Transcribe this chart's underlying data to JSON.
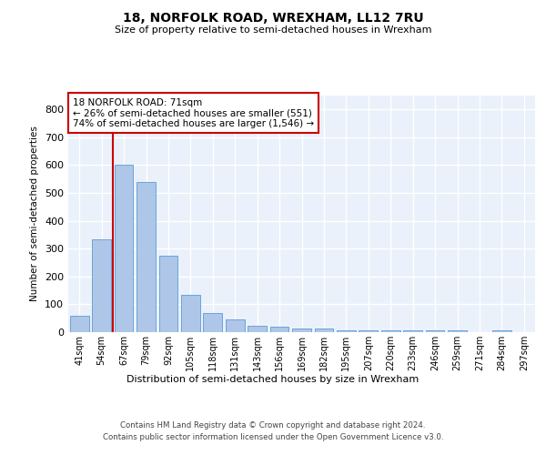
{
  "title": "18, NORFOLK ROAD, WREXHAM, LL12 7RU",
  "subtitle": "Size of property relative to semi-detached houses in Wrexham",
  "xlabel": "Distribution of semi-detached houses by size in Wrexham",
  "ylabel": "Number of semi-detached properties",
  "bin_labels": [
    "41sqm",
    "54sqm",
    "67sqm",
    "79sqm",
    "92sqm",
    "105sqm",
    "118sqm",
    "131sqm",
    "143sqm",
    "156sqm",
    "169sqm",
    "182sqm",
    "195sqm",
    "207sqm",
    "220sqm",
    "233sqm",
    "246sqm",
    "259sqm",
    "271sqm",
    "284sqm",
    "297sqm"
  ],
  "bar_values": [
    60,
    335,
    600,
    540,
    275,
    135,
    68,
    46,
    22,
    19,
    13,
    14,
    7,
    7,
    6,
    6,
    6,
    5,
    0,
    8,
    0
  ],
  "bar_color": "#aec6e8",
  "bar_edge_color": "#5b9bd5",
  "background_color": "#eaf1fb",
  "grid_color": "#ffffff",
  "vline_bin_index": 2,
  "vline_color": "#cc0000",
  "annotation_text": "18 NORFOLK ROAD: 71sqm\n← 26% of semi-detached houses are smaller (551)\n74% of semi-detached houses are larger (1,546) →",
  "annotation_box_color": "#ffffff",
  "annotation_box_edge": "#cc0000",
  "ylim": [
    0,
    850
  ],
  "yticks": [
    0,
    100,
    200,
    300,
    400,
    500,
    600,
    700,
    800
  ],
  "footer_line1": "Contains HM Land Registry data © Crown copyright and database right 2024.",
  "footer_line2": "Contains public sector information licensed under the Open Government Licence v3.0."
}
